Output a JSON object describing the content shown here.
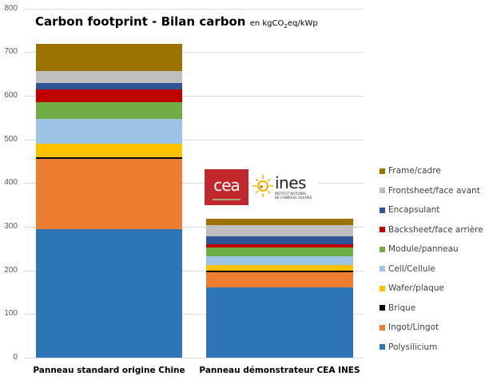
{
  "title": {
    "main": "Carbon footprint - Bilan carbon",
    "unit_prefix": "en kgCO",
    "unit_sub": "2",
    "unit_suffix": "eq/kWp"
  },
  "logos": {
    "cea": "cea",
    "ines": "ines",
    "ines_sub_1": "INSTITUT NATIONAL",
    "ines_sub_2": "DE L'ENERGIE SOLAIRE"
  },
  "colors": {
    "Polysilicium": "#2e75b6",
    "Ingot/Lingot": "#ed7d31",
    "Brique": "#000000",
    "Wafer/plaque": "#ffc000",
    "Cell/Cellule": "#9dc3e6",
    "Module/panneau": "#70ad47",
    "Backsheet/face arrière": "#c00000",
    "Encapsulant": "#2f5597",
    "Frontsheet/face avant": "#bfbfbf",
    "Frame/cadre": "#9c7300"
  },
  "chart_data": {
    "type": "bar",
    "stacked": true,
    "title": "Carbon footprint - Bilan carbon en kgCO2eq/kWp",
    "xlabel": "",
    "ylabel": "",
    "ylim": [
      0,
      800
    ],
    "yticks": [
      0,
      100,
      200,
      300,
      400,
      500,
      600,
      700,
      800
    ],
    "grid": true,
    "legend_position": "right",
    "categories": [
      "Panneau standard origine Chine",
      "Panneau démonstrateur CEA INES"
    ],
    "series": [
      {
        "name": "Polysilicium",
        "values": [
          294,
          161
        ]
      },
      {
        "name": "Ingot/Lingot",
        "values": [
          161,
          35
        ]
      },
      {
        "name": "Brique",
        "values": [
          4,
          3
        ]
      },
      {
        "name": "Wafer/plaque",
        "values": [
          31,
          13
        ]
      },
      {
        "name": "Cell/Cellule",
        "values": [
          57,
          20
        ]
      },
      {
        "name": "Module/panneau",
        "values": [
          38,
          20
        ]
      },
      {
        "name": "Backsheet/face arrière",
        "values": [
          30,
          8
        ]
      },
      {
        "name": "Encapsulant",
        "values": [
          14,
          18
        ]
      },
      {
        "name": "Frontsheet/face avant",
        "values": [
          28,
          26
        ]
      },
      {
        "name": "Frame/cadre",
        "values": [
          62,
          14
        ]
      }
    ],
    "totals": [
      719,
      318
    ]
  },
  "legend": [
    "Frame/cadre",
    "Frontsheet/face avant",
    "Encapsulant",
    "Backsheet/face arrière",
    "Module/panneau",
    "Cell/Cellule",
    "Wafer/plaque",
    "Brique",
    "Ingot/Lingot",
    "Polysilicium"
  ]
}
